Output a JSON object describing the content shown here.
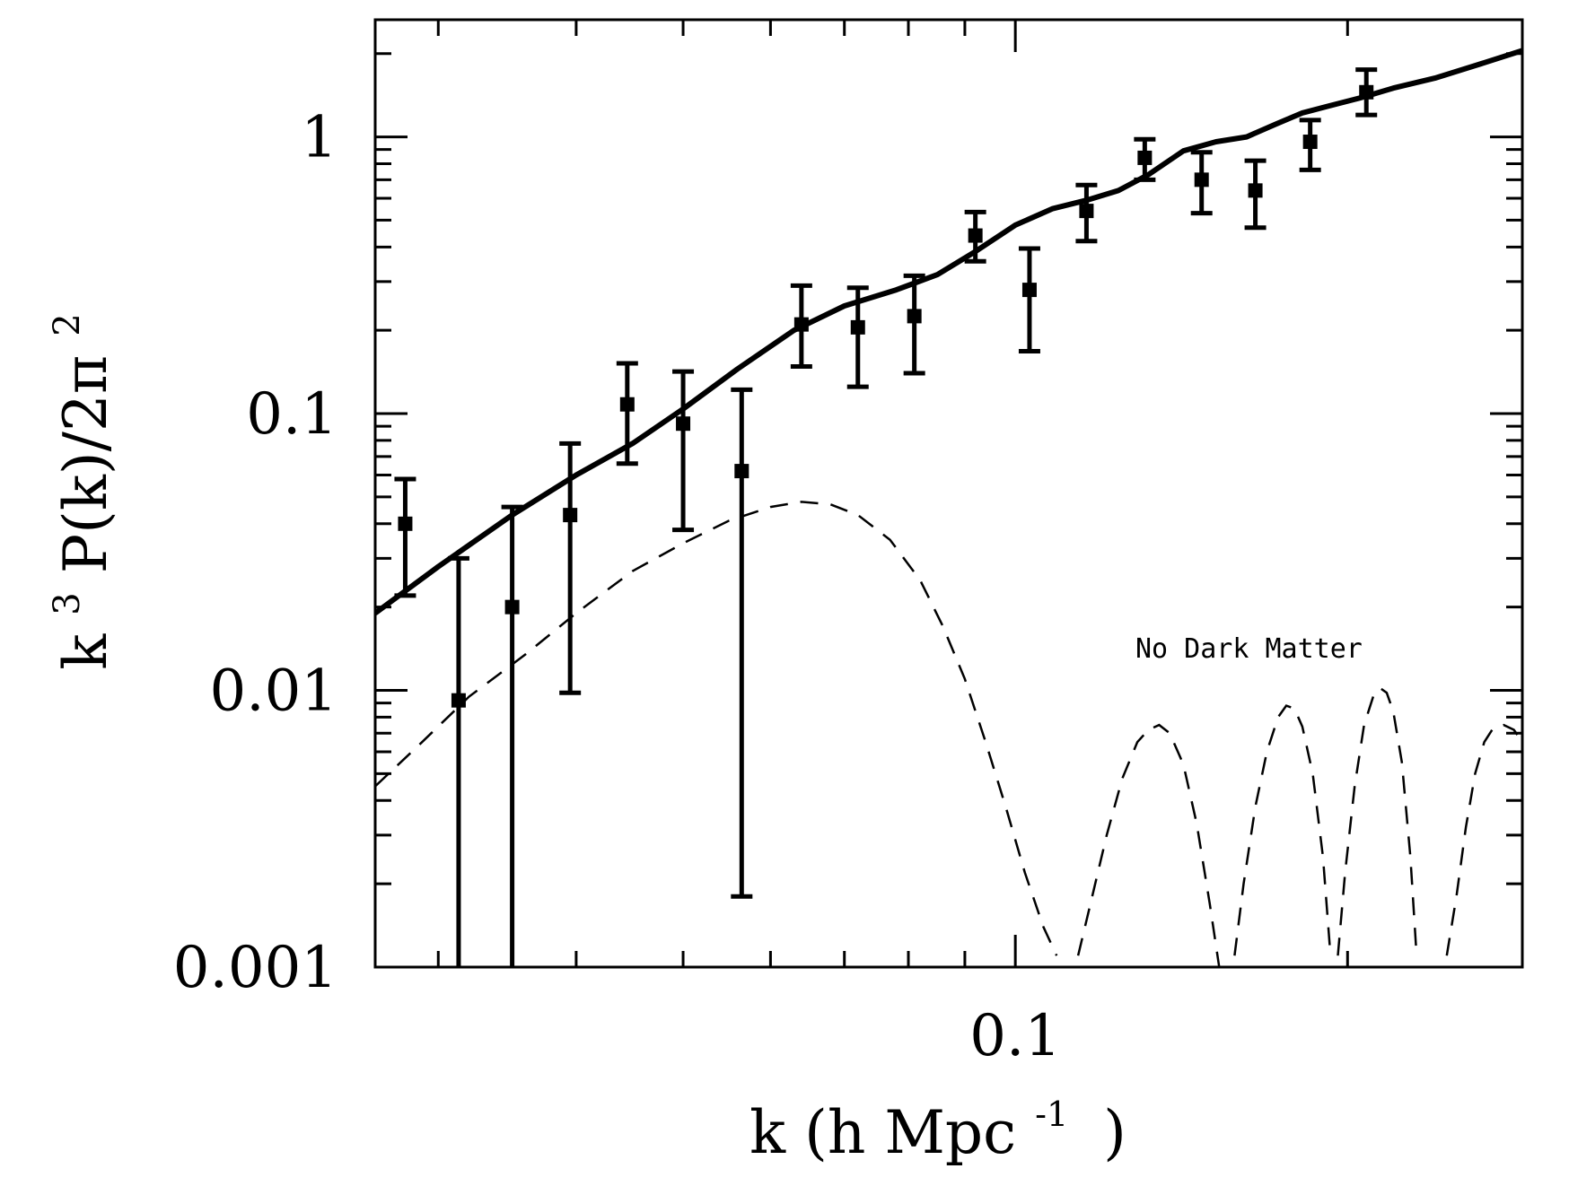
{
  "chart_data": {
    "type": "scatter",
    "xlabel": "k (h Mpc",
    "xlabel_superscript": "-1",
    "xlabel_suffix": ")",
    "ylabel": "k",
    "ylabel_superscript": "3",
    "ylabel_middle": " P(k)/2π",
    "ylabel_superscript_2": "2",
    "x_scale": "log",
    "y_scale": "log",
    "xlim": [
      0.0263,
      0.288
    ],
    "ylim": [
      0.001,
      2.65
    ],
    "x_ticks": [
      {
        "value": 0.1,
        "label": "0.1"
      }
    ],
    "y_ticks": [
      {
        "value": 0.001,
        "label": "0.001"
      },
      {
        "value": 0.01,
        "label": "0.01"
      },
      {
        "value": 0.1,
        "label": "0.1"
      },
      {
        "value": 1,
        "label": "1"
      }
    ],
    "annotation": "No Dark Matter",
    "grid": false,
    "data_points": [
      {
        "x": 0.028,
        "y": 0.04,
        "ylow": 0.022,
        "yhigh": 0.058
      },
      {
        "x": 0.0313,
        "y": 0.0092,
        "ylow": 0.001,
        "yhigh": 0.03
      },
      {
        "x": 0.035,
        "y": 0.02,
        "ylow": 0.001,
        "yhigh": 0.046
      },
      {
        "x": 0.0395,
        "y": 0.043,
        "ylow": 0.0098,
        "yhigh": 0.078
      },
      {
        "x": 0.0445,
        "y": 0.108,
        "ylow": 0.066,
        "yhigh": 0.152
      },
      {
        "x": 0.05,
        "y": 0.092,
        "ylow": 0.038,
        "yhigh": 0.142
      },
      {
        "x": 0.0565,
        "y": 0.062,
        "ylow": 0.0018,
        "yhigh": 0.122
      },
      {
        "x": 0.064,
        "y": 0.21,
        "ylow": 0.148,
        "yhigh": 0.29
      },
      {
        "x": 0.072,
        "y": 0.205,
        "ylow": 0.125,
        "yhigh": 0.285
      },
      {
        "x": 0.081,
        "y": 0.225,
        "ylow": 0.14,
        "yhigh": 0.315
      },
      {
        "x": 0.092,
        "y": 0.44,
        "ylow": 0.355,
        "yhigh": 0.535
      },
      {
        "x": 0.103,
        "y": 0.28,
        "ylow": 0.168,
        "yhigh": 0.395
      },
      {
        "x": 0.116,
        "y": 0.54,
        "ylow": 0.42,
        "yhigh": 0.67
      },
      {
        "x": 0.131,
        "y": 0.84,
        "ylow": 0.7,
        "yhigh": 0.98
      },
      {
        "x": 0.1475,
        "y": 0.7,
        "ylow": 0.53,
        "yhigh": 0.88
      },
      {
        "x": 0.165,
        "y": 0.64,
        "ylow": 0.47,
        "yhigh": 0.82
      },
      {
        "x": 0.185,
        "y": 0.96,
        "ylow": 0.76,
        "yhigh": 1.15
      },
      {
        "x": 0.208,
        "y": 1.45,
        "ylow": 1.2,
        "yhigh": 1.75
      }
    ],
    "series": [
      {
        "style": "solid",
        "x": [
          0.0263,
          0.03,
          0.035,
          0.04,
          0.045,
          0.05,
          0.056,
          0.063,
          0.07,
          0.078,
          0.085,
          0.092,
          0.1,
          0.108,
          0.116,
          0.124,
          0.132,
          0.142,
          0.152,
          0.162,
          0.172,
          0.182,
          0.192,
          0.205,
          0.22,
          0.24,
          0.26,
          0.288
        ],
        "y": [
          0.019,
          0.028,
          0.043,
          0.06,
          0.078,
          0.104,
          0.145,
          0.2,
          0.245,
          0.28,
          0.318,
          0.385,
          0.48,
          0.55,
          0.59,
          0.64,
          0.73,
          0.89,
          0.96,
          1.0,
          1.11,
          1.22,
          1.29,
          1.38,
          1.5,
          1.63,
          1.8,
          2.05
        ]
      },
      {
        "style": "dashed",
        "segments": [
          {
            "x": [
              0.0263,
              0.029,
              0.032,
              0.036,
              0.04,
              0.045,
              0.05,
              0.055,
              0.06,
              0.064,
              0.068,
              0.072,
              0.077,
              0.082,
              0.086,
              0.09,
              0.094,
              0.098,
              0.102,
              0.106,
              0.109
            ],
            "y": [
              0.0045,
              0.0065,
              0.0095,
              0.0135,
              0.019,
              0.027,
              0.034,
              0.041,
              0.046,
              0.048,
              0.047,
              0.043,
              0.035,
              0.025,
              0.017,
              0.011,
              0.0065,
              0.0038,
              0.0022,
              0.0014,
              0.0011
            ]
          },
          {
            "x": [
              0.114,
              0.117,
              0.121,
              0.125,
              0.129,
              0.132,
              0.135,
              0.138,
              0.142,
              0.146,
              0.15,
              0.153
            ],
            "y": [
              0.0011,
              0.0017,
              0.003,
              0.0048,
              0.0065,
              0.0072,
              0.0075,
              0.007,
              0.0054,
              0.0033,
              0.0017,
              0.001
            ]
          },
          {
            "x": [
              0.158,
              0.161,
              0.165,
              0.169,
              0.173,
              0.176,
              0.179,
              0.182,
              0.186,
              0.19,
              0.193
            ],
            "y": [
              0.0011,
              0.002,
              0.0038,
              0.006,
              0.008,
              0.0088,
              0.0086,
              0.0074,
              0.005,
              0.0025,
              0.0011
            ]
          },
          {
            "x": [
              0.196,
              0.199,
              0.203,
              0.207,
              0.211,
              0.214,
              0.217,
              0.22,
              0.224,
              0.228,
              0.231
            ],
            "y": [
              0.0011,
              0.0022,
              0.0045,
              0.0075,
              0.0095,
              0.0102,
              0.0098,
              0.0084,
              0.0055,
              0.0025,
              0.0011
            ]
          },
          {
            "x": [
              0.246,
              0.251,
              0.256,
              0.261,
              0.266,
              0.271,
              0.277,
              0.283,
              0.288
            ],
            "y": [
              0.0011,
              0.0018,
              0.0032,
              0.005,
              0.0065,
              0.0073,
              0.0075,
              0.0072,
              0.0065
            ]
          }
        ]
      }
    ]
  }
}
